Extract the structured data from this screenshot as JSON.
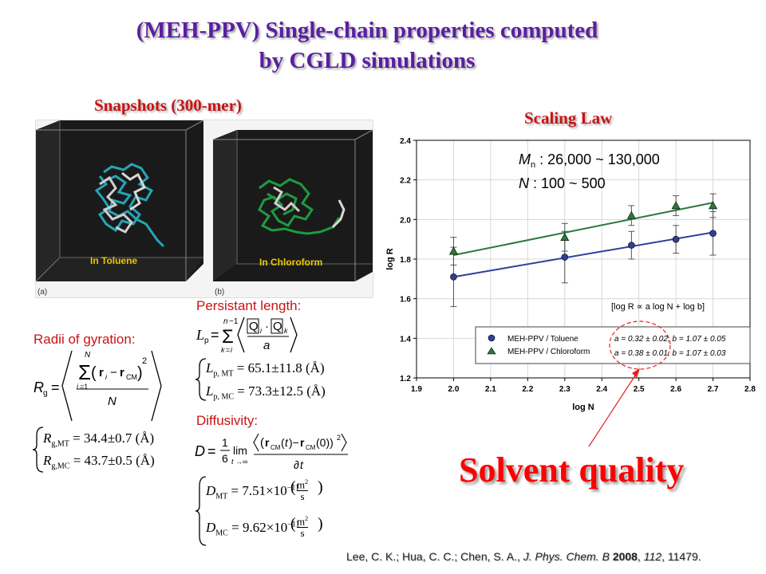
{
  "slide": {
    "title_line1": "(MEH-PPV) Single-chain properties computed",
    "title_line2": "by CGLD simulations",
    "snapshots_heading": "Snapshots (300-mer)",
    "scaling_heading": "Scaling Law",
    "solvent_quality": "Solvent quality",
    "citation_authors": "Lee, C. K.; Hua, C. C.; Chen, S. A., ",
    "citation_journal": "J. Phys. Chem. B",
    "citation_year": "2008",
    "citation_volume": "112",
    "citation_pages": ", 11479."
  },
  "snapshots": {
    "left_label": "In Toluene",
    "left_tag": "(a)",
    "right_label": "In Chloroform",
    "right_tag": "(b)"
  },
  "equations": {
    "persistent_length_label": "Persistant length:",
    "lp_mt": "65.1±11.8 (Å)",
    "lp_mc": "73.3±12.5 (Å)",
    "radii_label": "Radii of gyration:",
    "rg_mt": "34.4±0.7 (Å)",
    "rg_mc": "43.7±0.5 (Å)",
    "diffusivity_label": "Diffusivity:",
    "d_mt_mantissa": "7.51×10",
    "d_mt_exp": "−11",
    "d_mc_mantissa": "9.62×10",
    "d_mc_exp": "−11"
  },
  "chart_data": {
    "type": "scatter",
    "xlabel": "log N",
    "ylabel": "log R",
    "xlim": [
      1.9,
      2.8
    ],
    "ylim": [
      1.2,
      2.4
    ],
    "xticks": [
      "1.9",
      "2.0",
      "2.1",
      "2.2",
      "2.3",
      "2.4",
      "2.5",
      "2.6",
      "2.7",
      "2.8"
    ],
    "yticks": [
      "1.2",
      "1.4",
      "1.6",
      "1.8",
      "2.0",
      "2.2",
      "2.4"
    ],
    "grid": true,
    "legend_position": "bottom-right",
    "series": [
      {
        "name": "MEH-PPV / Toluene",
        "marker": "circle",
        "color": "#2e3f9a",
        "x": [
          2.0,
          2.3,
          2.48,
          2.6,
          2.7
        ],
        "y": [
          1.71,
          1.81,
          1.87,
          1.9,
          1.93
        ],
        "err": [
          0.15,
          0.13,
          0.07,
          0.07,
          0.11
        ],
        "fit": {
          "x": [
            2.0,
            2.7
          ],
          "y": [
            1.71,
            1.935
          ]
        },
        "fit_label": "a = 0.32 ± 0.02,  b = 1.07 ± 0.05"
      },
      {
        "name": "MEH-PPV / Chloroform",
        "marker": "triangle",
        "color": "#2a7a3a",
        "x": [
          2.0,
          2.3,
          2.48,
          2.6,
          2.7
        ],
        "y": [
          1.84,
          1.91,
          2.02,
          2.07,
          2.07
        ],
        "err": [
          0.07,
          0.07,
          0.05,
          0.05,
          0.06
        ],
        "fit": {
          "x": [
            2.0,
            2.7
          ],
          "y": [
            1.82,
            2.085
          ]
        },
        "fit_label": "a = 0.38 ± 0.01,  b = 1.07 ± 0.03"
      }
    ],
    "annotation_mn": ": 26,000 ~ 130,000",
    "annotation_n": ": 100 ~ 500",
    "fit_equation": "[log R ∝ a log N + log b]"
  }
}
